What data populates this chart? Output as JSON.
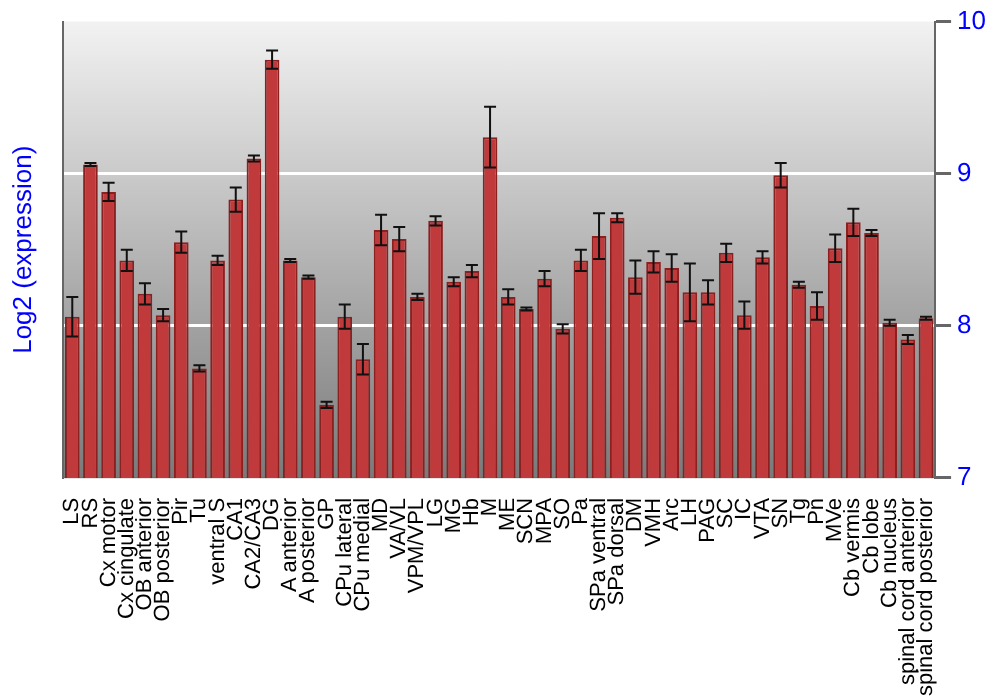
{
  "chart_data": {
    "type": "bar",
    "ylabel": "Log2 (expression)",
    "categories": [
      "LS",
      "RS",
      "Cx motor",
      "Cx cingulate",
      "OB anterior",
      "OB posterior",
      "Pir",
      "Tu",
      "ventral S",
      "CA1",
      "CA2/CA3",
      "DG",
      "A anterior",
      "A posterior",
      "GP",
      "CPu lateral",
      "CPu medial",
      "MD",
      "VA/VL",
      "VPM/VPL",
      "LG",
      "MG",
      "Hb",
      "M",
      "ME",
      "SCN",
      "MPA",
      "SO",
      "Pa",
      "SPa ventral",
      "SPa dorsal",
      "DM",
      "VMH",
      "Arc",
      "LH",
      "PAG",
      "SC",
      "IC",
      "VTA",
      "SN",
      "Tg",
      "Pn",
      "MVe",
      "Cb vermis",
      "Cb lobe",
      "Cb nucleus",
      "spinal cord anterior",
      "spinal cord posterior"
    ],
    "values": [
      8.06,
      9.06,
      8.88,
      8.43,
      8.21,
      8.07,
      8.55,
      7.72,
      8.43,
      8.83,
      9.1,
      9.75,
      8.43,
      8.32,
      7.48,
      8.06,
      7.78,
      8.63,
      8.57,
      8.19,
      8.69,
      8.29,
      8.36,
      9.24,
      8.19,
      8.11,
      8.31,
      7.98,
      8.43,
      8.59,
      8.71,
      8.32,
      8.42,
      8.38,
      8.22,
      8.22,
      8.48,
      8.07,
      8.45,
      8.99,
      8.27,
      8.13,
      8.51,
      8.68,
      8.61,
      8.02,
      7.91,
      8.05
    ],
    "errors": [
      0.13,
      0.01,
      0.06,
      0.07,
      0.07,
      0.04,
      0.07,
      0.02,
      0.03,
      0.08,
      0.02,
      0.06,
      0.01,
      0.01,
      0.02,
      0.08,
      0.1,
      0.1,
      0.08,
      0.02,
      0.03,
      0.03,
      0.04,
      0.2,
      0.05,
      0.01,
      0.05,
      0.03,
      0.07,
      0.15,
      0.03,
      0.11,
      0.07,
      0.09,
      0.19,
      0.08,
      0.06,
      0.09,
      0.04,
      0.08,
      0.02,
      0.09,
      0.09,
      0.09,
      0.02,
      0.02,
      0.03,
      0.01
    ],
    "color": "#c0393b",
    "ylim": [
      7,
      10
    ],
    "yticks": [
      7,
      8,
      9,
      10
    ],
    "grid": "y",
    "legend": false
  }
}
